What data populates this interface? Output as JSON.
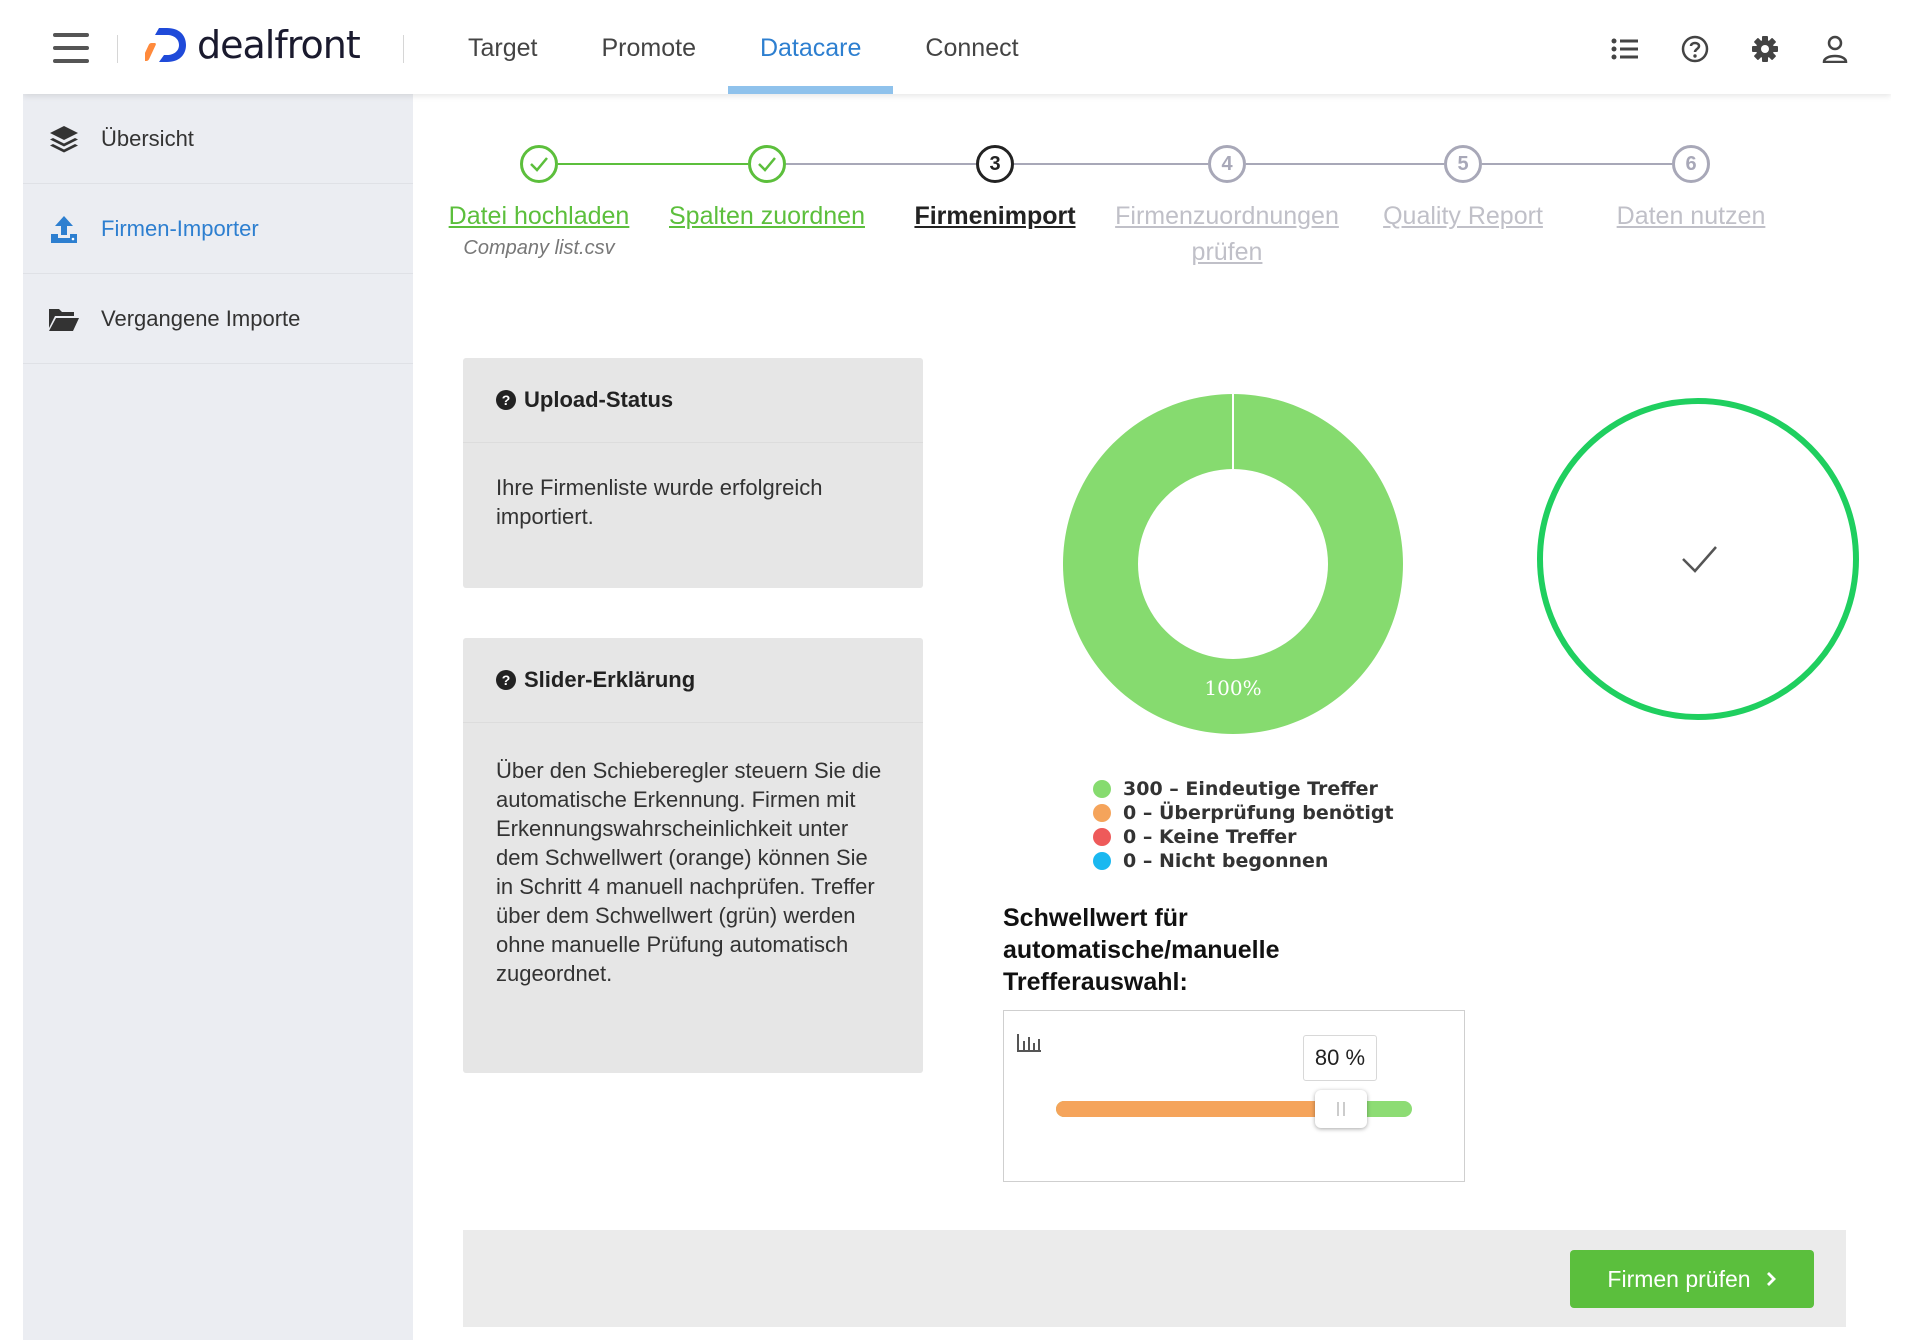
{
  "brand": {
    "name": "dealfront"
  },
  "nav": {
    "links": [
      "Target",
      "Promote",
      "Datacare",
      "Connect"
    ],
    "active": "Datacare",
    "icons": [
      "list-icon",
      "help-icon",
      "settings-icon",
      "user-icon"
    ]
  },
  "sidebar": {
    "items": [
      {
        "label": "Übersicht",
        "icon": "layers-icon"
      },
      {
        "label": "Firmen-Importer",
        "icon": "upload-icon",
        "active": true
      },
      {
        "label": "Vergangene Importe",
        "icon": "folder-open-icon"
      }
    ]
  },
  "stepper": {
    "steps": [
      {
        "num": "1",
        "label": "Datei hochladen",
        "state": "done",
        "sub": "Company list.csv"
      },
      {
        "num": "2",
        "label": "Spalten zuordnen",
        "state": "done"
      },
      {
        "num": "3",
        "label": "Firmenimport",
        "state": "current"
      },
      {
        "num": "4",
        "label": "Firmenzuordnungen prüfen",
        "state": "todo"
      },
      {
        "num": "5",
        "label": "Quality Report",
        "state": "todo"
      },
      {
        "num": "6",
        "label": "Daten nutzen",
        "state": "todo"
      }
    ]
  },
  "upload_card": {
    "title": "Upload-Status",
    "body": "Ihre Firmenliste wurde erfolgreich importiert."
  },
  "slider_card": {
    "title": "Slider-Erklärung",
    "body": "Über den Schieberegler steuern Sie die automatische Erkennung. Firmen mit Erkennungswahrscheinlichkeit unter dem Schwellwert (orange) können Sie in Schritt 4 manuell nachprüfen. Treffer über dem Schwellwert (grün) werden ohne manuelle Prüfung automatisch zugeordnet."
  },
  "donut": {
    "percent_label": "100%",
    "legend": [
      {
        "label": "300 – Eindeutige Treffer",
        "value": 300,
        "color": "#86db6f"
      },
      {
        "label": "0 – Überprüfung benötigt",
        "value": 0,
        "color": "#f5a45b"
      },
      {
        "label": "0 – Keine Treffer",
        "value": 0,
        "color": "#ee5a5a"
      },
      {
        "label": "0 – Nicht begonnen",
        "value": 0,
        "color": "#1ab8f0"
      }
    ]
  },
  "status_circle": {
    "icon": "check-icon",
    "color": "#1fcf5f"
  },
  "threshold": {
    "title": "Schwellwert für automatische/manuelle Trefferauswahl:",
    "value": 80,
    "value_label": "80 %",
    "low_color": "#f5a45b",
    "high_color": "#8ddc74"
  },
  "footer": {
    "primary_label": "Firmen prüfen"
  }
}
